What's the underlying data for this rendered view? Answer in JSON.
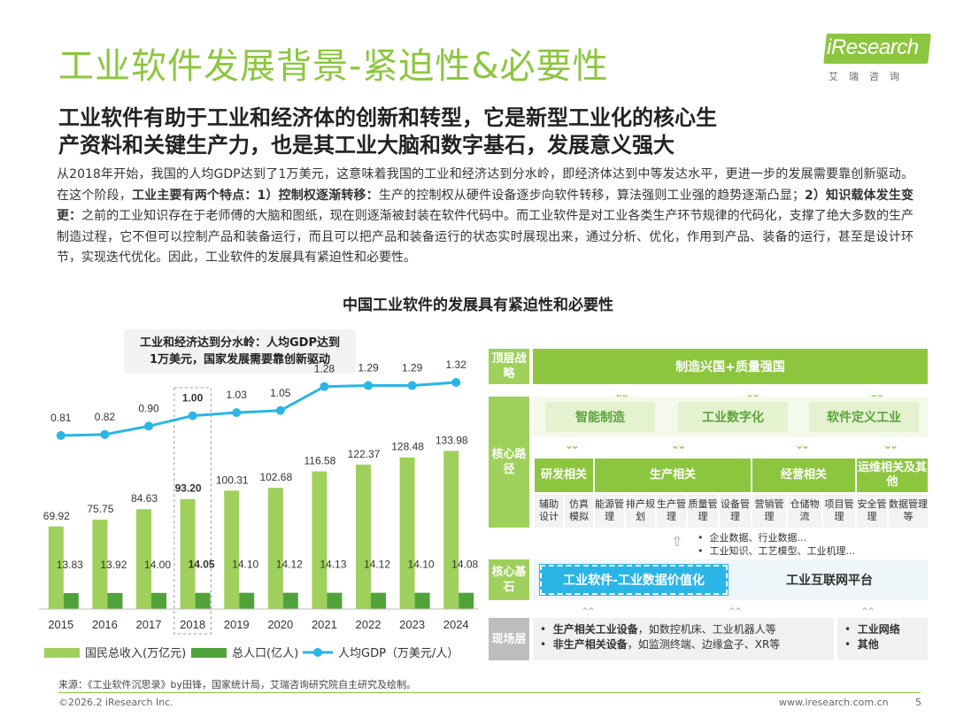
{
  "header": {
    "title": "工业软件发展背景-紧迫性&必要性",
    "logo_text": "iResearch",
    "logo_sub": "艾瑞咨询"
  },
  "subtitle": {
    "line1": "工业软件有助于工业和经济体的创新和转型，它是新型工业化的核心生",
    "line2": "产资料和关键生产力，也是其工业大脑和数字基石，发展意义强大"
  },
  "body": {
    "p1": "从2018年开始，我国的人均GDP达到了1万美元，这意味着我国的工业和经济达到分水岭，即经济体达到中等发达水平，更进一步的发展需要靠创新驱动。在这个阶段，",
    "b1": "工业主要有两个特点：1）控制权逐渐转移：",
    "p2": "生产的控制权从硬件设备逐步向软件转移，算法强则工业强的趋势逐渐凸显；",
    "b2": "2）知识载体发生变更：",
    "p3": "之前的工业知识存在于老师傅的大脑和图纸，现在则逐渐被封装在软件代码中。而工业软件是对工业各类生产环节规律的代码化，支撑了绝大多数的生产制造过程，它不但可以控制产品和装备运行，而且可以把产品和装备运行的状态实时展现出来，通过分析、优化，作用到产品、装备的运行，甚至是设计环节，实现迭代优化。因此，工业软件的发展具有紧迫性和必要性。"
  },
  "section_title": "中国工业软件的发展具有紧迫性和必要性",
  "callout": {
    "line1": "工业和经济达到分水岭：人均GDP达到",
    "line2": "1万美元，国家发展需要靠创新驱动"
  },
  "chart_data": {
    "type": "bar",
    "categories": [
      "2015",
      "2016",
      "2017",
      "2018",
      "2019",
      "2020",
      "2021",
      "2022",
      "2023",
      "2024"
    ],
    "highlight_category": "2018",
    "series": [
      {
        "name": "国民总收入(万亿元)",
        "type": "bar",
        "color": "#9fd05b",
        "values": [
          69.92,
          75.75,
          84.63,
          93.2,
          100.31,
          102.68,
          116.58,
          122.37,
          128.48,
          133.98
        ],
        "labels": [
          "69.92",
          "75.75",
          "84.63",
          "93.20",
          "100.31",
          "102.68",
          "116.58",
          "122.37",
          "128.48",
          "133.98"
        ]
      },
      {
        "name": "总人口(亿人)",
        "type": "bar",
        "color": "#4fa33a",
        "values": [
          13.83,
          13.92,
          14.0,
          14.05,
          14.1,
          14.12,
          14.13,
          14.12,
          14.1,
          14.08
        ],
        "labels": [
          "13.83",
          "13.92",
          "14.00",
          "14.05",
          "14.10",
          "14.12",
          "14.13",
          "14.12",
          "14.10",
          "14.08"
        ]
      },
      {
        "name": "人均GDP（万美元/人）",
        "type": "line",
        "color": "#2bb5e6",
        "values": [
          0.81,
          0.82,
          0.9,
          1.0,
          1.03,
          1.05,
          1.28,
          1.29,
          1.29,
          1.32
        ],
        "labels": [
          "0.81",
          "0.82",
          "0.90",
          "1.00",
          "1.03",
          "1.05",
          "1.28",
          "1.29",
          "1.29",
          "1.32"
        ]
      }
    ],
    "legend_position": "bottom",
    "grid": false
  },
  "diagram": {
    "top_label": "顶层战略",
    "top_header": "制造兴国+质量强国",
    "path_label": "核心路径",
    "pills": [
      "智能制造",
      "工业数字化",
      "软件定义工业"
    ],
    "groups": [
      "研发相关",
      "生产相关",
      "经营相关",
      "运维相关及其他"
    ],
    "cells": [
      "辅助设计",
      "仿真模拟",
      "能源管理",
      "排产规划",
      "生产管理",
      "质量管理",
      "设备管理",
      "营销管理",
      "仓储物流",
      "项目管理",
      "安全管理",
      "数据管理等"
    ],
    "notes": [
      "企业数据、行业数据...",
      "工业知识、工艺模型、工业机理..."
    ],
    "base_label": "核心基石",
    "core_blue": "工业软件-工业数据价值化",
    "core_grey": "工业互联网平台",
    "site_label": "现场层",
    "site_items": [
      {
        "bold": "生产相关工业设备",
        "rest": "，如数控机床、工业机器人等"
      },
      {
        "bold": "非生产相关设备",
        "rest": "，如监测终端、边缘盒子、XR等"
      }
    ],
    "site_items2": [
      "工业网络",
      "其他"
    ]
  },
  "footer": {
    "source": "来源：《工业软件沉思录》by田锋，国家统计局，艾瑞咨询研究院自主研究及绘制。",
    "copyright": "©2026.2 iResearch Inc.",
    "url": "www.iresearch.com.cn",
    "page": "5"
  }
}
